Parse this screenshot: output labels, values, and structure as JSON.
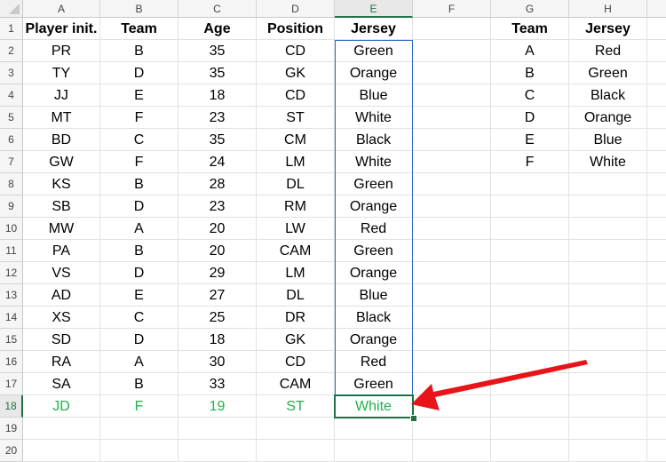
{
  "columns": [
    "A",
    "B",
    "C",
    "D",
    "E",
    "F",
    "G",
    "H"
  ],
  "rows": [
    "1",
    "2",
    "3",
    "4",
    "5",
    "6",
    "7",
    "8",
    "9",
    "10",
    "11",
    "12",
    "13",
    "14",
    "15",
    "16",
    "17",
    "18",
    "19",
    "20"
  ],
  "selected_cell": "E18",
  "main_table": {
    "headers": [
      "Player init.",
      "Team",
      "Age",
      "Position",
      "Jersey"
    ],
    "data": [
      [
        "PR",
        "B",
        "35",
        "CD",
        "Green"
      ],
      [
        "TY",
        "D",
        "35",
        "GK",
        "Orange"
      ],
      [
        "JJ",
        "E",
        "18",
        "CD",
        "Blue"
      ],
      [
        "MT",
        "F",
        "23",
        "ST",
        "White"
      ],
      [
        "BD",
        "C",
        "35",
        "CM",
        "Black"
      ],
      [
        "GW",
        "F",
        "24",
        "LM",
        "White"
      ],
      [
        "KS",
        "B",
        "28",
        "DL",
        "Green"
      ],
      [
        "SB",
        "D",
        "23",
        "RM",
        "Orange"
      ],
      [
        "MW",
        "A",
        "20",
        "LW",
        "Red"
      ],
      [
        "PA",
        "B",
        "20",
        "CAM",
        "Green"
      ],
      [
        "VS",
        "D",
        "29",
        "LM",
        "Orange"
      ],
      [
        "AD",
        "E",
        "27",
        "DL",
        "Blue"
      ],
      [
        "XS",
        "C",
        "25",
        "DR",
        "Black"
      ],
      [
        "SD",
        "D",
        "18",
        "GK",
        "Orange"
      ],
      [
        "RA",
        "A",
        "30",
        "CD",
        "Red"
      ],
      [
        "SA",
        "B",
        "33",
        "CAM",
        "Green"
      ],
      [
        "JD",
        "F",
        "19",
        "ST",
        "White"
      ]
    ]
  },
  "lookup_table": {
    "headers": [
      "Team",
      "Jersey"
    ],
    "data": [
      [
        "A",
        "Red"
      ],
      [
        "B",
        "Green"
      ],
      [
        "C",
        "Black"
      ],
      [
        "D",
        "Orange"
      ],
      [
        "E",
        "Blue"
      ],
      [
        "F",
        "White"
      ]
    ]
  },
  "colors": {
    "highlight_text": "#1fb24a",
    "selection": "#1e7145",
    "range_border": "#2b6cc4",
    "arrow": "#e8141a"
  }
}
